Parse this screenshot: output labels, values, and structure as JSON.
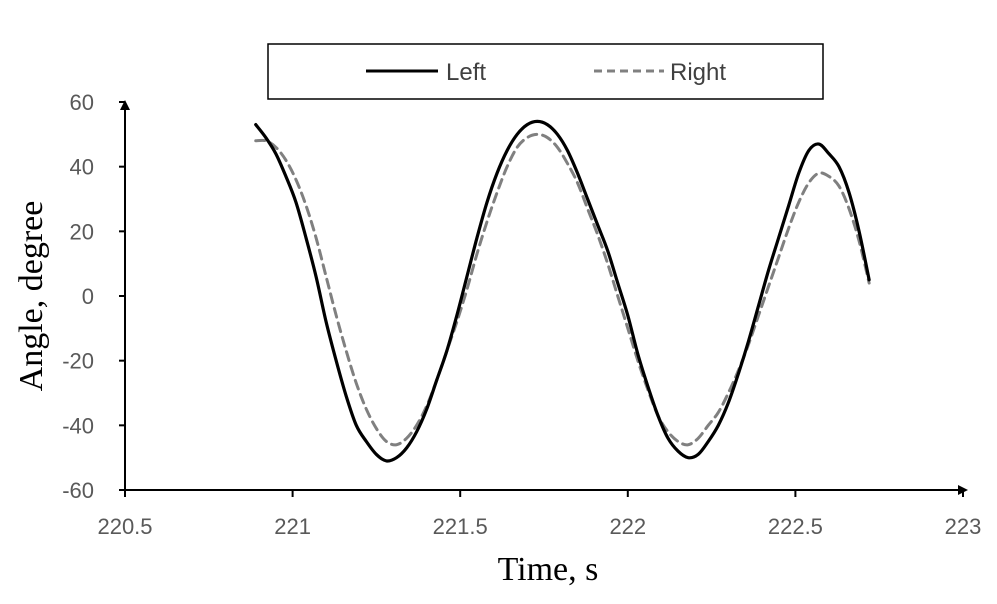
{
  "chart_data": {
    "type": "line",
    "title": "",
    "xlabel": "Time, s",
    "ylabel": "Angle, degree",
    "xlim": [
      220.5,
      223
    ],
    "ylim": [
      -60,
      60
    ],
    "x_ticks": [
      "220.5",
      "221",
      "221.5",
      "222",
      "222.5",
      "223"
    ],
    "y_ticks": [
      "60",
      "40",
      "20",
      "0",
      "-20",
      "-40",
      "-60"
    ],
    "grid": false,
    "legend_position": "top",
    "series": [
      {
        "name": "Left",
        "style": "solid",
        "color": "#000000",
        "x": [
          220.89,
          220.92,
          220.95,
          220.98,
          221.01,
          221.04,
          221.07,
          221.1,
          221.13,
          221.16,
          221.19,
          221.22,
          221.25,
          221.28,
          221.31,
          221.34,
          221.37,
          221.4,
          221.43,
          221.46,
          221.49,
          221.52,
          221.55,
          221.58,
          221.61,
          221.64,
          221.67,
          221.7,
          221.73,
          221.76,
          221.79,
          221.82,
          221.85,
          221.88,
          221.91,
          221.94,
          221.97,
          222.0,
          222.03,
          222.06,
          222.09,
          222.12,
          222.15,
          222.18,
          222.21,
          222.24,
          222.27,
          222.3,
          222.33,
          222.36,
          222.39,
          222.42,
          222.45,
          222.48,
          222.51,
          222.54,
          222.57,
          222.6,
          222.63,
          222.66,
          222.69,
          222.72
        ],
        "y": [
          53,
          49,
          44,
          37,
          29,
          18,
          6,
          -8,
          -20,
          -31,
          -40,
          -45,
          -49,
          -51,
          -50,
          -47,
          -42,
          -35,
          -26,
          -17,
          -6,
          6,
          18,
          29,
          38,
          45,
          50,
          53,
          54,
          53,
          50,
          45,
          38,
          30,
          22,
          14,
          4,
          -6,
          -18,
          -28,
          -37,
          -44,
          -48,
          -50,
          -49,
          -45,
          -40,
          -33,
          -24,
          -14,
          -3,
          8,
          18,
          28,
          38,
          45,
          47,
          44,
          40,
          32,
          20,
          5
        ],
        "x_nominal_start": 220.89
      },
      {
        "name": "Right",
        "style": "dashed",
        "color": "#808080",
        "x": [
          220.89,
          220.92,
          220.95,
          220.98,
          221.01,
          221.04,
          221.07,
          221.1,
          221.13,
          221.16,
          221.19,
          221.22,
          221.25,
          221.28,
          221.31,
          221.34,
          221.37,
          221.4,
          221.43,
          221.46,
          221.49,
          221.52,
          221.55,
          221.58,
          221.61,
          221.64,
          221.67,
          221.7,
          221.73,
          221.76,
          221.79,
          221.82,
          221.85,
          221.88,
          221.91,
          221.94,
          221.97,
          222.0,
          222.03,
          222.06,
          222.09,
          222.12,
          222.15,
          222.18,
          222.21,
          222.24,
          222.27,
          222.3,
          222.33,
          222.36,
          222.39,
          222.42,
          222.45,
          222.48,
          222.51,
          222.54,
          222.57,
          222.6,
          222.63,
          222.66,
          222.69,
          222.72
        ],
        "y": [
          48,
          48,
          46,
          42,
          36,
          28,
          18,
          6,
          -6,
          -17,
          -27,
          -35,
          -41,
          -45,
          -46,
          -44,
          -40,
          -34,
          -26,
          -17,
          -8,
          2,
          13,
          23,
          32,
          40,
          46,
          49,
          50,
          49,
          46,
          41,
          35,
          27,
          19,
          10,
          0,
          -10,
          -20,
          -29,
          -37,
          -42,
          -45,
          -46,
          -44,
          -40,
          -36,
          -30,
          -23,
          -15,
          -6,
          3,
          12,
          21,
          29,
          35,
          38,
          37,
          34,
          27,
          17,
          4
        ]
      }
    ]
  }
}
